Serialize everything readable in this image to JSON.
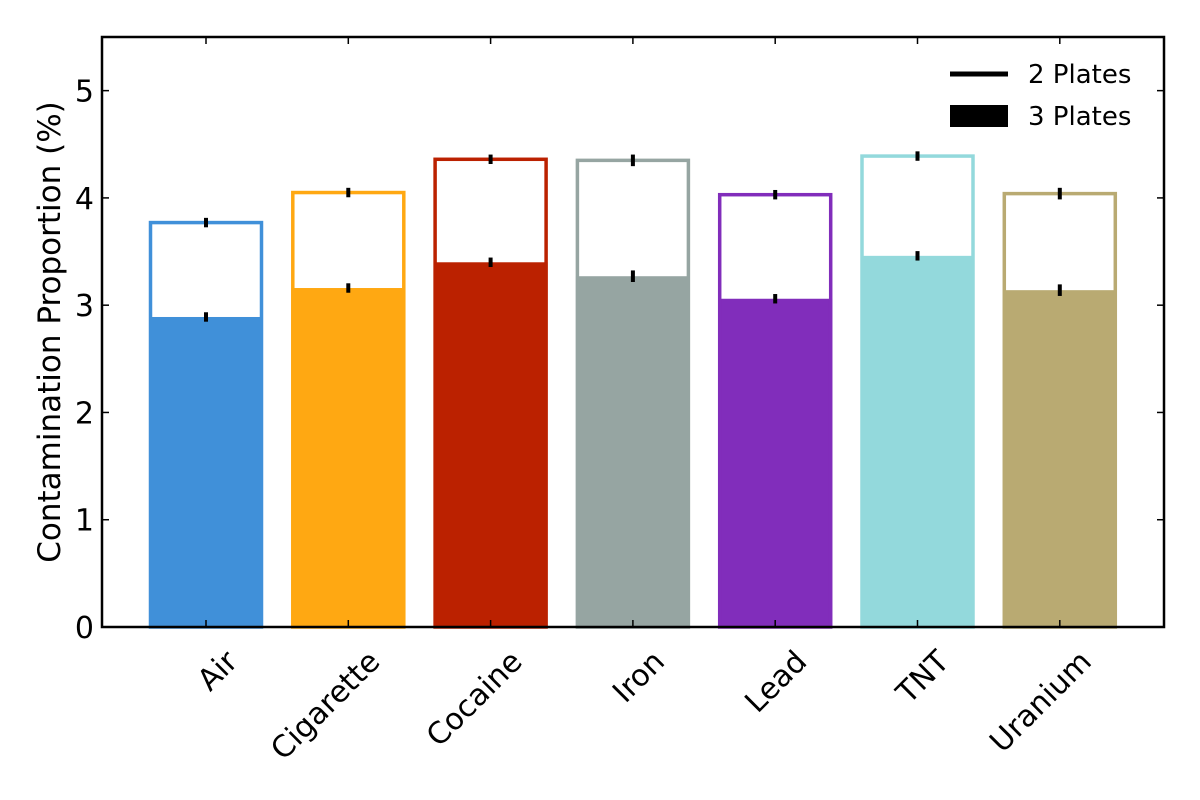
{
  "chart_data": {
    "type": "bar",
    "title": "",
    "xlabel": "",
    "ylabel": "Contamination Proportion (%)",
    "ylim": [
      0,
      5.5
    ],
    "yticks": [
      0,
      1,
      2,
      3,
      4,
      5
    ],
    "categories": [
      "Air",
      "Cigarette",
      "Cocaine",
      "Iron",
      "Lead",
      "TNT",
      "Uranium"
    ],
    "colors": [
      "#4090d9",
      "#ffa812",
      "#bb2100",
      "#96a5a2",
      "#812dbb",
      "#93d9dc",
      "#b9aa72"
    ],
    "series": [
      {
        "name": "2 Plates",
        "style": "outline",
        "values": [
          3.77,
          4.05,
          4.36,
          4.35,
          4.03,
          4.39,
          4.04
        ],
        "error": [
          0.03,
          0.03,
          0.03,
          0.04,
          0.03,
          0.03,
          0.04
        ]
      },
      {
        "name": "3 Plates",
        "style": "filled",
        "values": [
          2.89,
          3.16,
          3.4,
          3.27,
          3.06,
          3.46,
          3.14
        ],
        "error": [
          0.03,
          0.03,
          0.03,
          0.04,
          0.03,
          0.03,
          0.04
        ]
      }
    ],
    "legend": {
      "position": "top-right",
      "entries": [
        {
          "label": "2 Plates",
          "marker": "line"
        },
        {
          "label": "3 Plates",
          "marker": "patch"
        }
      ]
    },
    "grid": false
  }
}
